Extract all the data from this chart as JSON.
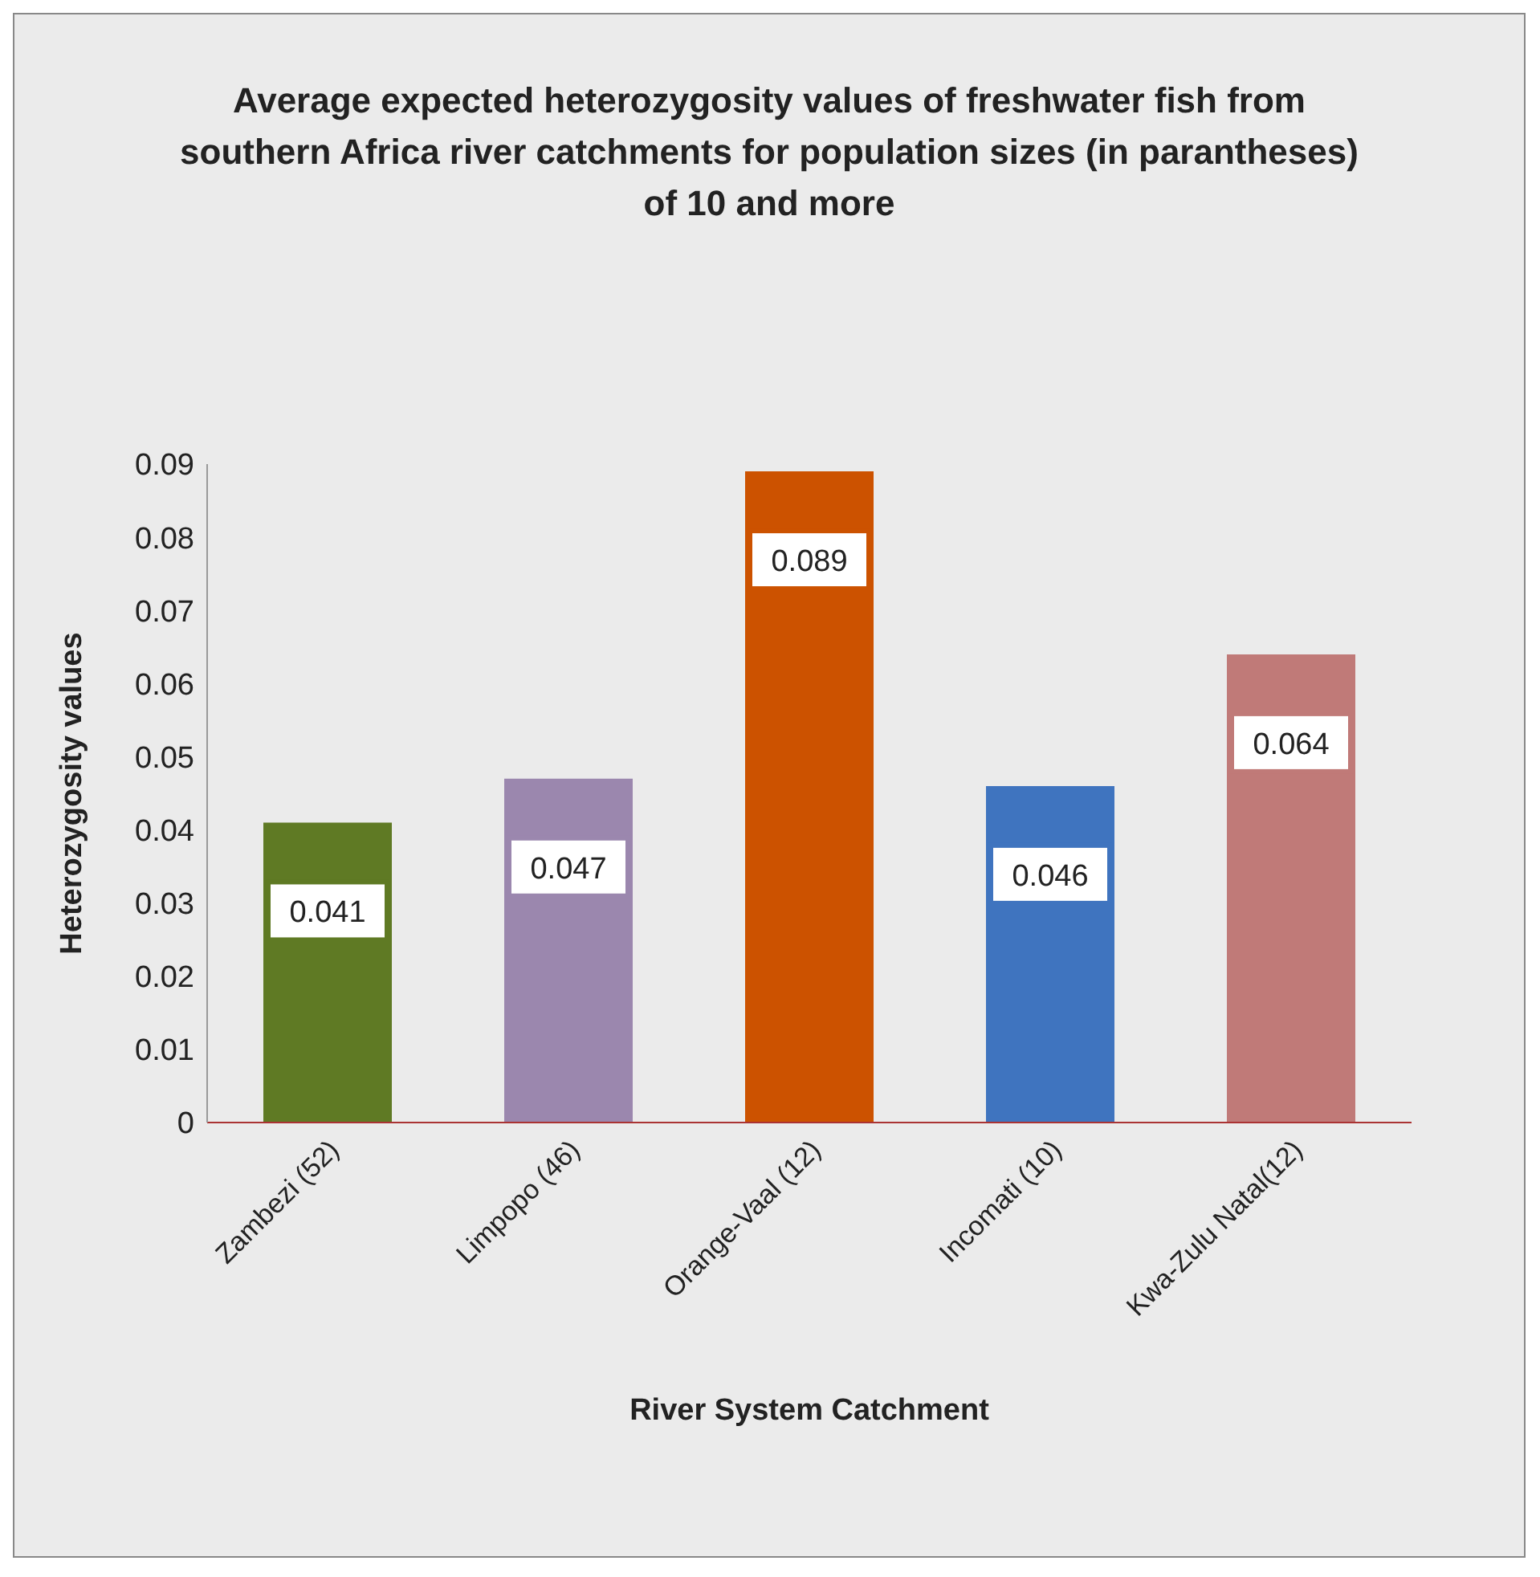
{
  "chart_data": {
    "type": "bar",
    "title": "Average expected heterozygosity values of freshwater fish from southern Africa river catchments for  population sizes (in parantheses) of 10 and more",
    "xlabel": "River System Catchment",
    "ylabel": "Heterozygosity values",
    "categories": [
      "Zambezi (52)",
      "Limpopo (46)",
      "Orange-Vaal (12)",
      "Incomati (10)",
      "Kwa-Zulu Natal(12)"
    ],
    "values": [
      0.041,
      0.047,
      0.089,
      0.046,
      0.064
    ],
    "colors": [
      "#5f7a24",
      "#9b87ae",
      "#cc5200",
      "#3f74bf",
      "#c07a78"
    ],
    "ylim": [
      0,
      0.09
    ],
    "yticks": [
      0,
      0.01,
      0.02,
      0.03,
      0.04,
      0.05,
      0.06,
      0.07,
      0.08,
      0.09
    ],
    "data_labels": true,
    "grid": false,
    "legend": false
  }
}
